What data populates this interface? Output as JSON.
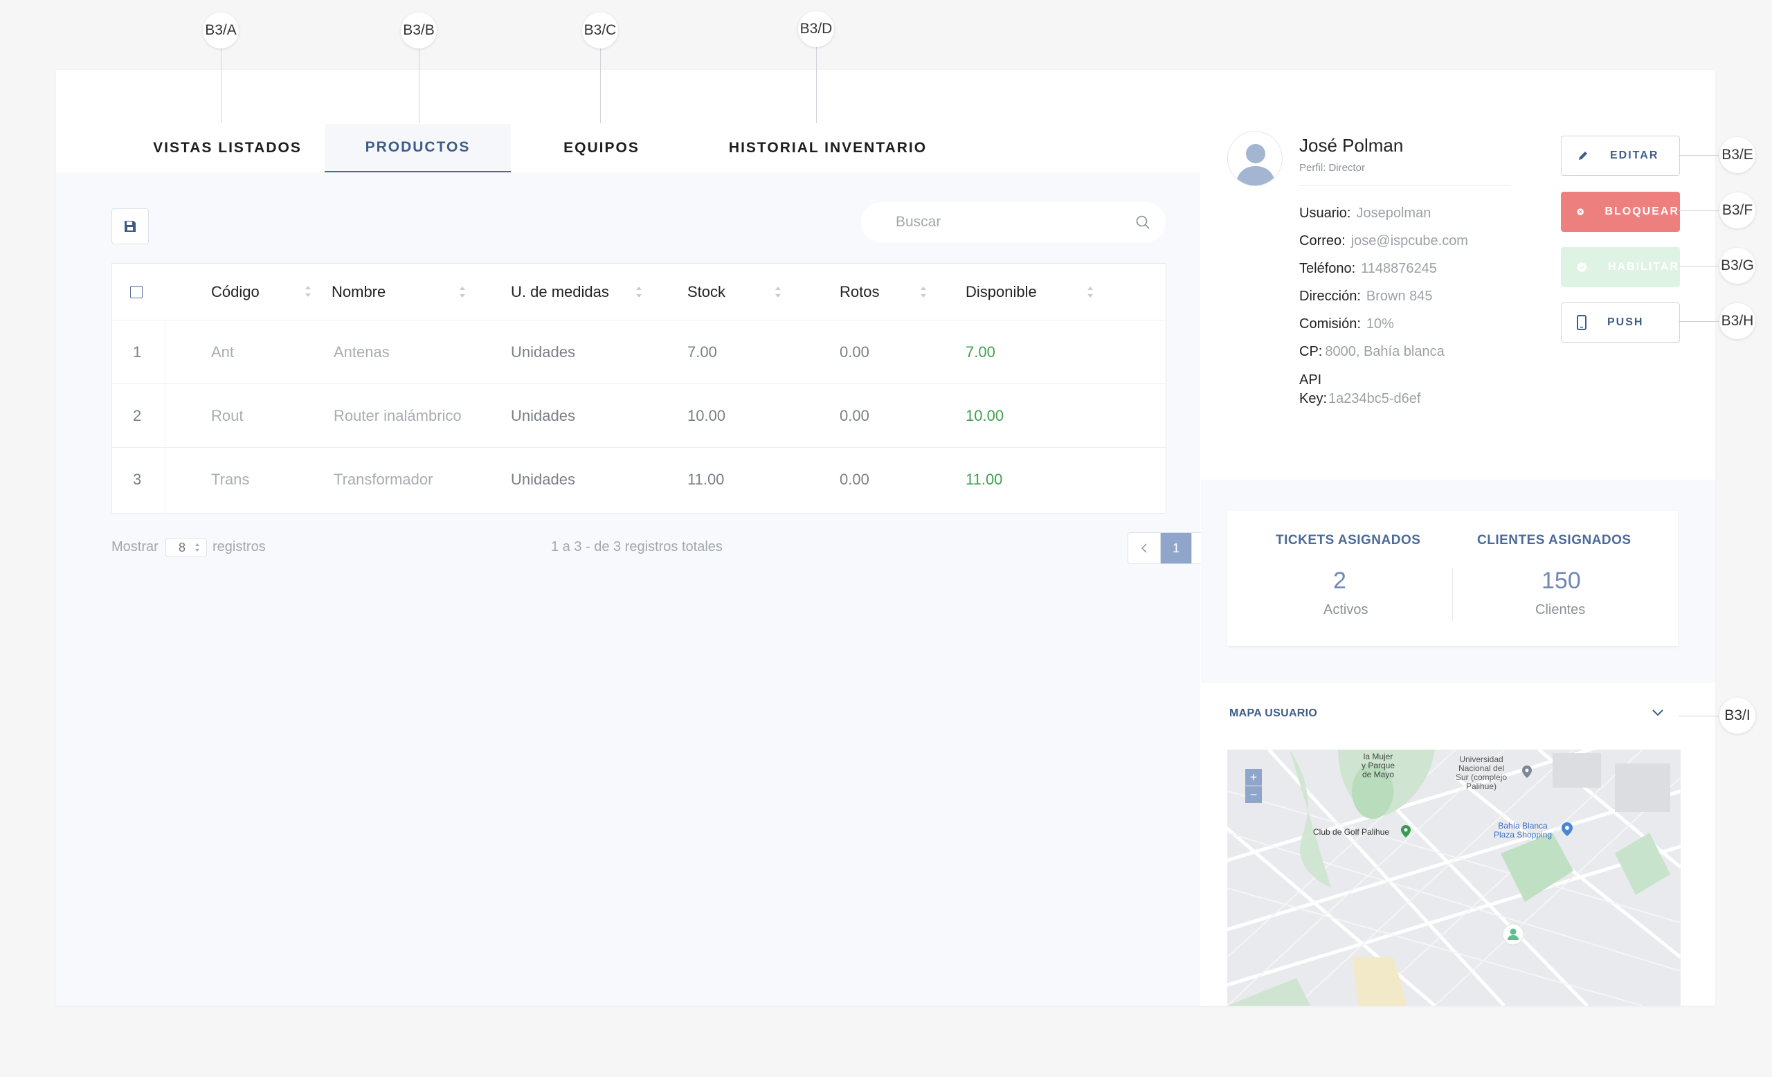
{
  "callouts": {
    "a": "B3/A",
    "b": "B3/B",
    "c": "B3/C",
    "d": "B3/D",
    "e": "B3/E",
    "f": "B3/F",
    "g": "B3/G",
    "h": "B3/H",
    "i": "B3/I"
  },
  "tabs": [
    {
      "label": "VISTAS LISTADOS"
    },
    {
      "label": "PRODUCTOS"
    },
    {
      "label": "EQUIPOS"
    },
    {
      "label": "HISTORIAL INVENTARIO"
    }
  ],
  "search": {
    "placeholder": "Buscar"
  },
  "table": {
    "headers": [
      "Código",
      "Nombre",
      "U. de medidas",
      "Stock",
      "Rotos",
      "Disponible"
    ],
    "rows": [
      {
        "n": "1",
        "codigo": "Ant",
        "nombre": "Antenas",
        "unidad": "Unidades",
        "stock": "7.00",
        "rotos": "0.00",
        "disponible": "7.00"
      },
      {
        "n": "2",
        "codigo": "Rout",
        "nombre": "Router inalámbrico",
        "unidad": "Unidades",
        "stock": "10.00",
        "rotos": "0.00",
        "disponible": "10.00"
      },
      {
        "n": "3",
        "codigo": "Trans",
        "nombre": "Transformador",
        "unidad": "Unidades",
        "stock": "11.00",
        "rotos": "0.00",
        "disponible": "11.00"
      }
    ]
  },
  "footer": {
    "show_label": "Mostrar",
    "per_page": "8",
    "records_label": "registros",
    "summary": "1 a 3 - de 3 registros totales",
    "current_page": "1"
  },
  "profile": {
    "name": "José Polman",
    "role": "Perfil: Director",
    "fields": [
      {
        "label": "Usuario:",
        "value": "Josepolman"
      },
      {
        "label": "Correo:",
        "value": "jose@ispcube.com"
      },
      {
        "label": "Teléfono:",
        "value": "1148876245"
      },
      {
        "label": "Dirección:",
        "value": "Brown 845"
      },
      {
        "label": "Comisión:",
        "value": "10%"
      },
      {
        "label": "CP:",
        "value": "8000, Bahía blanca"
      }
    ],
    "api_label_1": "API",
    "api_label_2": "Key:",
    "api_value": "1a234bc5-d6ef"
  },
  "actions": {
    "edit": "EDITAR",
    "block": "BLOQUEAR",
    "enable": "HABILITAR",
    "push": "PUSH"
  },
  "stats": {
    "tickets_title": "TICKETS ASIGNADOS",
    "tickets_value": "2",
    "tickets_sub": "Activos",
    "clients_title": "CLIENTES ASIGNADOS",
    "clients_value": "150",
    "clients_sub": "Clientes"
  },
  "map": {
    "title": "MAPA USUARIO",
    "labels": {
      "park_1": "la Mujer",
      "park_2": "y Parque",
      "park_3": "de Mayo",
      "uni_1": "Universidad",
      "uni_2": "Nacional del",
      "uni_3": "Sur (complejo",
      "uni_4": "Palihue)",
      "golf": "Club de Golf Palihue",
      "mall_1": "Bahía Blanca",
      "mall_2": "Plaza Shopping"
    }
  },
  "colors": {
    "accent": "#4a6a99",
    "danger": "#ee7f7f",
    "success": "#3fa14f",
    "enable_disabled": "#dff3e4"
  }
}
